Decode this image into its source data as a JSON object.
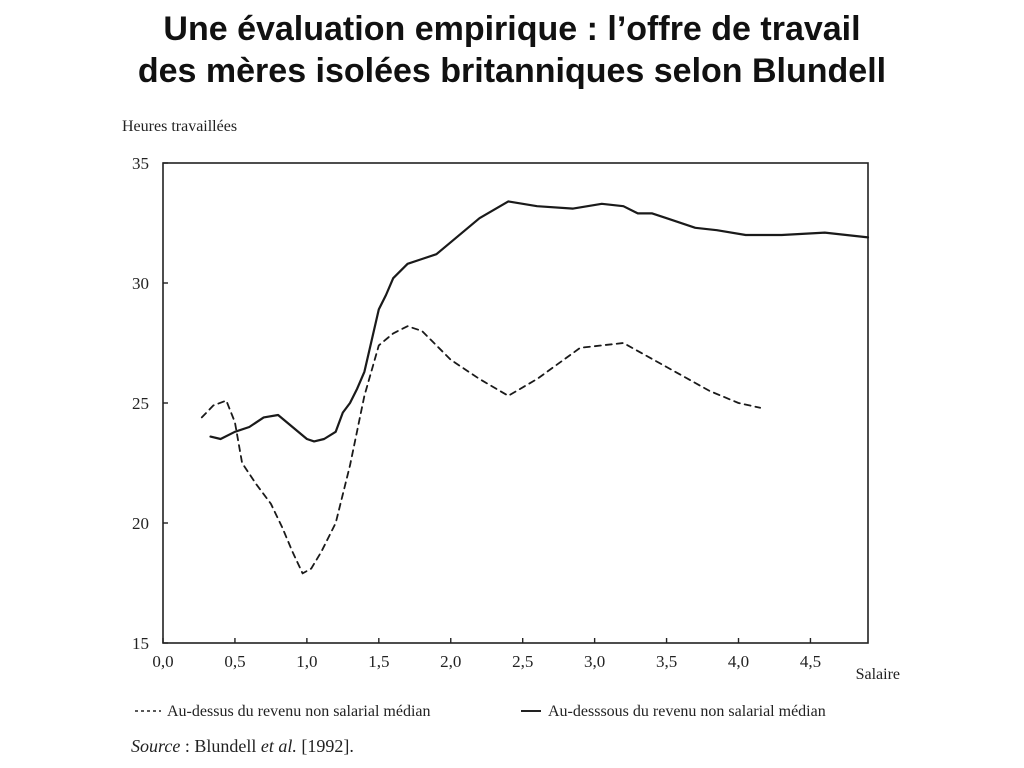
{
  "slide": {
    "title_line1": "Une évaluation empirique : l’offre de travail",
    "title_line2": "des mères isolées britanniques selon Blundell"
  },
  "source": {
    "label": "Source",
    "separator": " : ",
    "author": "Blundell ",
    "etal": "et al.",
    "year": " [1992]."
  },
  "chart_data": {
    "type": "line",
    "title": "",
    "ylabel": "Heures travaillées",
    "xlabel": "Salaire",
    "xlim": [
      0.0,
      4.9
    ],
    "ylim": [
      15,
      35
    ],
    "x_ticks": [
      "0,0",
      "0,5",
      "1,0",
      "1,5",
      "2,0",
      "2,5",
      "3,0",
      "3,5",
      "4,0",
      "4,5"
    ],
    "y_ticks": [
      "15",
      "20",
      "25",
      "30",
      "35"
    ],
    "grid": false,
    "legend_position": "bottom",
    "series": [
      {
        "name": "Au-dessus du revenu non salarial médian",
        "style": "dashed",
        "x": [
          0.27,
          0.35,
          0.44,
          0.5,
          0.55,
          0.65,
          0.75,
          0.83,
          0.9,
          0.97,
          1.03,
          1.1,
          1.2,
          1.3,
          1.4,
          1.5,
          1.6,
          1.7,
          1.8,
          1.9,
          2.0,
          2.2,
          2.4,
          2.6,
          2.9,
          3.2,
          3.5,
          3.8,
          4.0,
          4.15
        ],
        "y": [
          24.4,
          24.9,
          25.1,
          24.2,
          22.5,
          21.6,
          20.8,
          19.8,
          18.8,
          17.9,
          18.1,
          18.8,
          20.0,
          22.4,
          25.3,
          27.4,
          27.9,
          28.2,
          28.0,
          27.4,
          26.8,
          26.0,
          25.3,
          26.0,
          27.3,
          27.5,
          26.5,
          25.5,
          25.0,
          24.8
        ]
      },
      {
        "name": "Au-desssous du revenu non salarial médian",
        "style": "solid",
        "x": [
          0.33,
          0.4,
          0.5,
          0.6,
          0.7,
          0.8,
          0.9,
          1.0,
          1.05,
          1.12,
          1.2,
          1.25,
          1.3,
          1.35,
          1.4,
          1.45,
          1.5,
          1.55,
          1.6,
          1.7,
          1.8,
          1.9,
          2.0,
          2.2,
          2.4,
          2.6,
          2.85,
          3.05,
          3.2,
          3.3,
          3.4,
          3.5,
          3.7,
          3.85,
          4.05,
          4.3,
          4.6,
          4.9
        ],
        "y": [
          23.6,
          23.5,
          23.8,
          24.0,
          24.4,
          24.5,
          24.0,
          23.5,
          23.4,
          23.5,
          23.8,
          24.6,
          25.0,
          25.6,
          26.3,
          27.6,
          28.9,
          29.5,
          30.2,
          30.8,
          31.0,
          31.2,
          31.7,
          32.7,
          33.4,
          33.2,
          33.1,
          33.3,
          33.2,
          32.9,
          32.9,
          32.7,
          32.3,
          32.2,
          32.0,
          32.0,
          32.1,
          31.9
        ]
      }
    ]
  }
}
